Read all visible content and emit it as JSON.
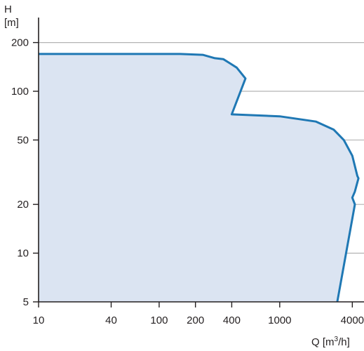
{
  "chart_data": {
    "type": "area",
    "title": "",
    "ylabel": "H",
    "ylabel_unit": "[m]",
    "xlabel_parts": {
      "pre": "Q [m",
      "sup": "3",
      "post": "/h]"
    },
    "x_scale": "log",
    "y_scale": "log",
    "xlim": [
      10,
      5000
    ],
    "ylim": [
      5,
      300
    ],
    "grid": true,
    "x_ticks": [
      10,
      40,
      100,
      200,
      400,
      1000,
      4000
    ],
    "x_tick_labels": [
      "10",
      "40",
      "100",
      "200",
      "400",
      "1000",
      "4000"
    ],
    "y_ticks": [
      5,
      10,
      20,
      50,
      100,
      200
    ],
    "y_tick_labels": [
      "5",
      "10",
      "20",
      "50",
      "100",
      "200"
    ],
    "series": [
      {
        "x": [
          10,
          150,
          230,
          290,
          340,
          380,
          440,
          520,
          400,
          1000,
          2000,
          2800,
          3400,
          4000,
          4400,
          4500,
          4200,
          4000,
          4200,
          3000
        ],
        "y": [
          170,
          170,
          168,
          160,
          158,
          150,
          140,
          120,
          72,
          70,
          65,
          58,
          50,
          40,
          30,
          29,
          24,
          22,
          20,
          5
        ]
      }
    ],
    "colors": {
      "line": "#1f78b4",
      "fill": "#dbe4f2",
      "grid": "#b3b3b3",
      "axis": "#231f20"
    }
  }
}
